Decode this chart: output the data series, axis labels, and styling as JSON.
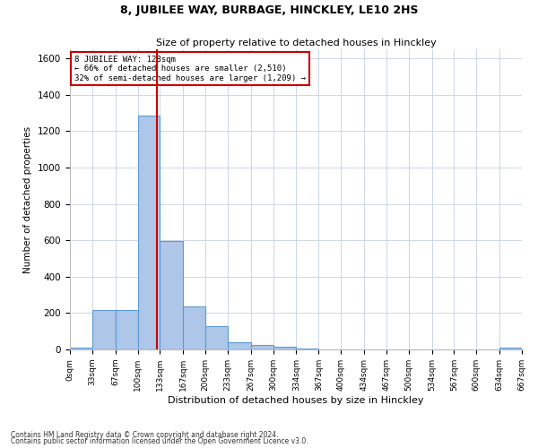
{
  "title": "8, JUBILEE WAY, BURBAGE, HINCKLEY, LE10 2HS",
  "subtitle": "Size of property relative to detached houses in Hinckley",
  "xlabel": "Distribution of detached houses by size in Hinckley",
  "ylabel": "Number of detached properties",
  "footnote1": "Contains HM Land Registry data © Crown copyright and database right 2024.",
  "footnote2": "Contains public sector information licensed under the Open Government Licence v3.0.",
  "bar_edges": [
    0,
    33,
    67,
    100,
    133,
    167,
    200,
    233,
    267,
    300,
    334,
    367,
    400,
    434,
    467,
    500,
    534,
    567,
    600,
    634,
    667
  ],
  "bar_heights": [
    10,
    215,
    215,
    1285,
    595,
    235,
    130,
    40,
    25,
    15,
    5,
    0,
    0,
    0,
    0,
    0,
    0,
    0,
    0,
    10
  ],
  "bar_color": "#aec6e8",
  "bar_edgecolor": "#5b9bd5",
  "vline_x": 128,
  "vline_color": "#cc0000",
  "annotation_title": "8 JUBILEE WAY: 128sqm",
  "annotation_line2": "← 66% of detached houses are smaller (2,510)",
  "annotation_line3": "32% of semi-detached houses are larger (1,209) →",
  "ylim": [
    0,
    1650
  ],
  "yticks": [
    0,
    200,
    400,
    600,
    800,
    1000,
    1200,
    1400,
    1600
  ],
  "tick_labels": [
    "0sqm",
    "33sqm",
    "67sqm",
    "100sqm",
    "133sqm",
    "167sqm",
    "200sqm",
    "233sqm",
    "267sqm",
    "300sqm",
    "334sqm",
    "367sqm",
    "400sqm",
    "434sqm",
    "467sqm",
    "500sqm",
    "534sqm",
    "567sqm",
    "600sqm",
    "634sqm",
    "667sqm"
  ],
  "background_color": "#ffffff",
  "grid_color": "#ccd6e8"
}
